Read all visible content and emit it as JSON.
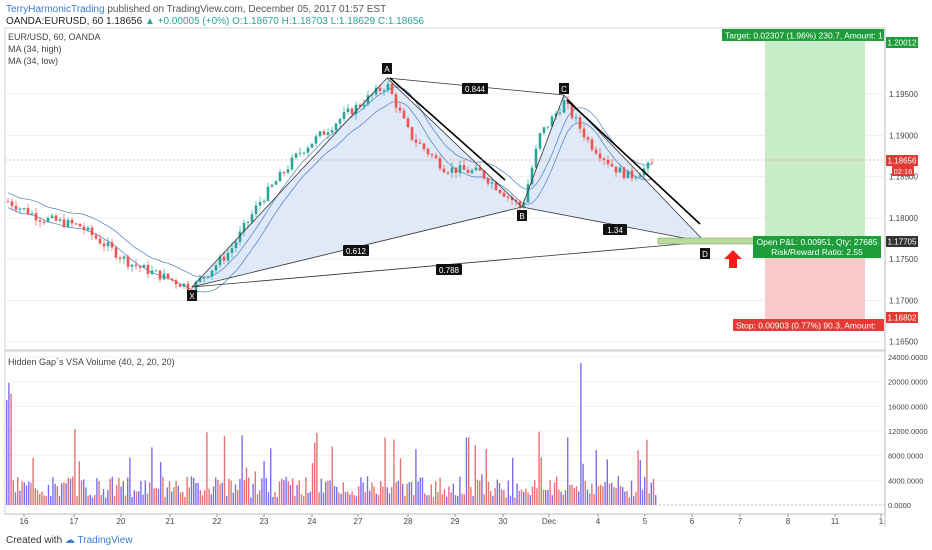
{
  "header": {
    "author": "TerryHarmonicTrading",
    "published": "published on TradingView.com, December 05, 2017 01:57 EST",
    "symbol_line": "OANDA:EURUSD, 60",
    "last": "1.18656",
    "change": "▲ +0.00005 (+0%)",
    "ohlc": "O:1.18670 H:1.18703 L:1.18629 C:1.18656"
  },
  "legend": {
    "main": "EUR/USD, 60, OANDA",
    "ma_high": "MA (34, high)",
    "ma_low": "MA (34, low)",
    "volume": "Hidden Gap`s VSA Volume (40, 2, 20, 20)"
  },
  "footer": {
    "created_with": "Created with",
    "brand": "TradingView"
  },
  "colors": {
    "up": "#26a69a",
    "down": "#ef5350",
    "wedge": "#dfe9f8",
    "target": "#c8ecc8",
    "stop": "#f9caca",
    "vol_up": "#7b6ff0",
    "vol_down": "#e57373"
  },
  "chart_data": {
    "type": "candlestick",
    "price_axis": {
      "ticks": [
        "1.19500",
        "1.19000",
        "1.18500",
        "1.18000",
        "1.17500",
        "1.17000",
        "1.16500"
      ],
      "ylim": [
        1.164,
        1.203
      ]
    },
    "price_labels": {
      "target": "1.20012",
      "last": "1.18656",
      "countdown": "02:16",
      "entry": "1.17705",
      "stop": "1.16802"
    },
    "x_axis": {
      "ticks": [
        "16",
        "17",
        "20",
        "21",
        "22",
        "23",
        "24",
        "27",
        "28",
        "29",
        "30",
        "Dec",
        "4",
        "5",
        "6",
        "7",
        "8",
        "11",
        "1"
      ]
    },
    "pattern": {
      "points": [
        {
          "label": "X",
          "price": 1.1715
        },
        {
          "label": "A",
          "price": 1.1962
        },
        {
          "label": "B",
          "price": 1.1812
        },
        {
          "label": "C",
          "price": 1.194
        },
        {
          "label": "D",
          "price": 1.177
        }
      ],
      "ratios": [
        "0.844",
        "0.612",
        "1.34",
        "0.788"
      ]
    },
    "position": {
      "target_label": "Target: 0.02307 (1.96%) 230.7, Amount: 1",
      "stop_label": "Stop: 0.00903 (0.77%) 90.3, Amount:",
      "open_pl": "Open P&L: 0.00951, Qty: 27685",
      "rr": "Risk/Reward Ratio: 2.55"
    },
    "volume_axis": {
      "ticks": [
        "24000.0000",
        "20000.0000",
        "16000.0000",
        "12000.0000",
        "8000.0000",
        "4000.0000",
        "0.0000"
      ],
      "ylim": [
        0,
        24000
      ]
    },
    "volume_spikes": [
      {
        "position": "near 28",
        "value": 23000
      }
    ]
  }
}
